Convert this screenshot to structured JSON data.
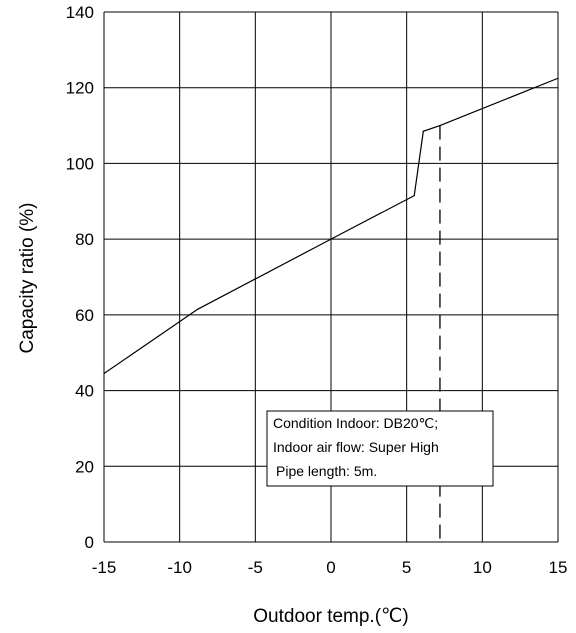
{
  "chart_data": {
    "type": "line",
    "xlabel": "Outdoor temp.(℃)",
    "ylabel": "Capacity ratio (%)",
    "xlim": [
      -15,
      15
    ],
    "ylim": [
      0,
      140
    ],
    "xticks": [
      -15,
      -10,
      -5,
      0,
      5,
      10,
      15
    ],
    "yticks": [
      0,
      20,
      40,
      60,
      80,
      100,
      120,
      140
    ],
    "grid": true,
    "series": [
      {
        "x": [
          -15,
          -8.8,
          0,
          5.5,
          6.1,
          7.2,
          15
        ],
        "y": [
          44.5,
          61.5,
          80,
          91.5,
          108.5,
          110,
          122.5
        ]
      }
    ],
    "reference_line": {
      "x": 7.2,
      "style": "dashed"
    },
    "annotation_lines": [
      "Condition Indoor: DB20℃;",
      "Indoor air flow: Super High",
      "Pipe length: 5m."
    ]
  }
}
